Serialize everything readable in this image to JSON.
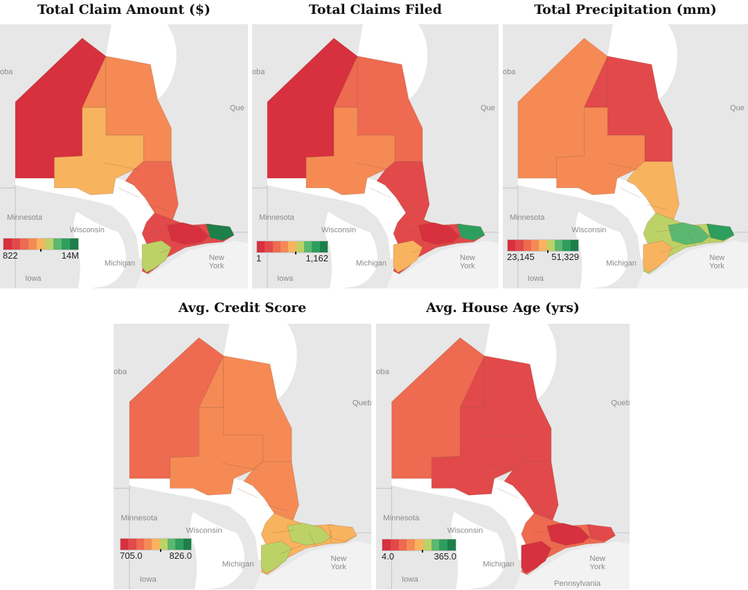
{
  "panels": [
    {
      "title": "Total Claim Amount ($)",
      "legend": {
        "min": "822",
        "max": "14M"
      }
    },
    {
      "title": "Total Claims Filed",
      "legend": {
        "min": "1",
        "max": "1,162"
      }
    },
    {
      "title": "Total Precipitation (mm)",
      "legend": {
        "min": "23,145",
        "max": "51,329"
      }
    },
    {
      "title": "Avg. Credit Score",
      "legend": {
        "min": "705.0",
        "max": "826.0"
      }
    },
    {
      "title": "Avg. House Age (yrs)",
      "legend": {
        "min": "4.0",
        "max": "365.0"
      }
    }
  ],
  "basemap_labels": {
    "manitoba": "oba",
    "quebec_short": "Que",
    "quebec_long": "Queb",
    "minnesota": "Minnesota",
    "wisconsin": "Wisconsin",
    "michigan": "Michigan",
    "iowa": "Iowa",
    "new": "New",
    "york": "York",
    "pennsylvania": "Pennsylvania"
  },
  "colors": {
    "scale": [
      "#d7303e",
      "#e2494a",
      "#ee6a50",
      "#f58a55",
      "#f8b35f",
      "#bcd267",
      "#5cb870",
      "#2e9e5e",
      "#1d7f49"
    ],
    "water": "#ffffff",
    "land": "#e7e7e7"
  }
}
